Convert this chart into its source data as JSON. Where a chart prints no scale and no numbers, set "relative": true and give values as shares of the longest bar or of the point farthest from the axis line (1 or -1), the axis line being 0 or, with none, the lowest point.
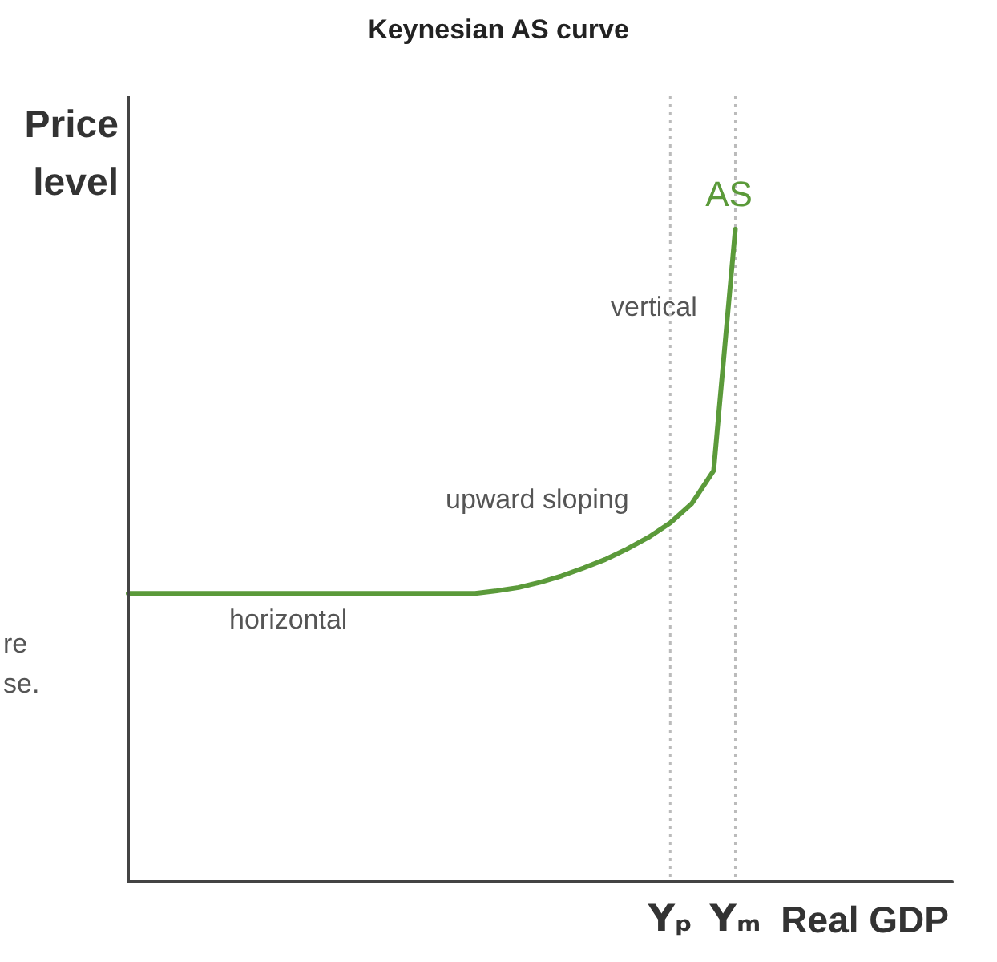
{
  "chart_data": {
    "type": "line",
    "title": "Keynesian AS curve",
    "xlabel": "Real GDP",
    "ylabel": "Price\nlevel",
    "relative": true,
    "grid": false,
    "legend": false,
    "marker": "none",
    "line_style": "solid",
    "tick_labels": "x",
    "categories": [
      null,
      null,
      null,
      null,
      null,
      null,
      null,
      null,
      null,
      null,
      null,
      null,
      null,
      null,
      null,
      null,
      null,
      null,
      null,
      null,
      null,
      null,
      null,
      null,
      null,
      "Yₚ",
      null,
      null,
      "Yₘ",
      null,
      null,
      null,
      null,
      null,
      null,
      null,
      null,
      null,
      null
    ],
    "series": [
      {
        "name": "AS",
        "color": "#5b9a3a",
        "values": [
          0.442,
          0.442,
          0.442,
          0.442,
          0.442,
          0.442,
          0.442,
          0.442,
          0.442,
          0.442,
          0.442,
          0.442,
          0.442,
          0.442,
          0.442,
          0.442,
          0.442,
          0.446,
          0.451,
          0.459,
          0.469,
          0.481,
          0.494,
          0.51,
          0.528,
          0.55,
          0.58,
          0.63,
          1,
          null,
          null,
          null,
          null,
          null,
          null,
          null,
          null,
          null,
          null
        ]
      }
    ],
    "ref_lines": [
      {
        "axis": "x",
        "value": "Yₚ",
        "color": "#bbbbbb",
        "line_style": "dotted"
      },
      {
        "axis": "x",
        "value": "Yₘ",
        "color": "#bbbbbb",
        "line_style": "dotted"
      }
    ],
    "annotations": [
      "horizontal",
      "upward sloping",
      "vertical",
      "re",
      "se."
    ]
  }
}
